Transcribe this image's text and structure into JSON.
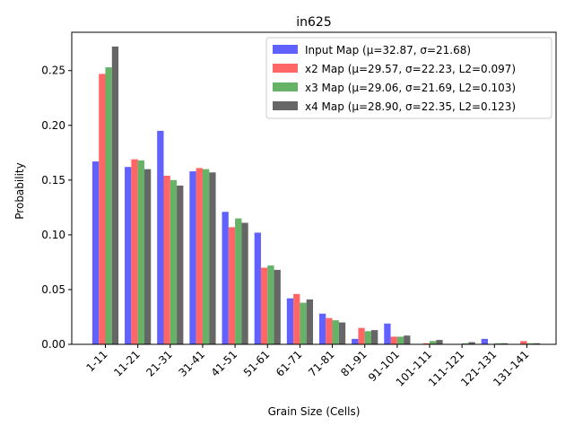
{
  "chart_data": {
    "type": "bar",
    "title": "in625",
    "xlabel": "Grain Size (Cells)",
    "ylabel": "Probability",
    "ylim": [
      0,
      0.285
    ],
    "yticks": [
      "0.00",
      "0.05",
      "0.10",
      "0.15",
      "0.20",
      "0.25"
    ],
    "grid": false,
    "legend_position": "top-right",
    "categories": [
      "1-11",
      "11-21",
      "21-31",
      "31-41",
      "41-51",
      "51-61",
      "61-71",
      "71-81",
      "81-91",
      "91-101",
      "101-111",
      "111-121",
      "121-131",
      "131-141"
    ],
    "series": [
      {
        "name": "Input Map (μ=32.87, σ=21.68)",
        "color": "#6161ff",
        "values": [
          0.167,
          0.162,
          0.195,
          0.158,
          0.121,
          0.102,
          0.042,
          0.028,
          0.005,
          0.019,
          0.0,
          0.0,
          0.005,
          0.0
        ]
      },
      {
        "name": "x2 Map (μ=29.57, σ=22.23, L2=0.097)",
        "color": "#ff6666",
        "values": [
          0.247,
          0.169,
          0.154,
          0.161,
          0.107,
          0.07,
          0.046,
          0.024,
          0.015,
          0.007,
          0.001,
          0.0,
          0.0,
          0.003
        ]
      },
      {
        "name": "x3 Map (μ=29.06, σ=21.69, L2=0.103)",
        "color": "#66b266",
        "values": [
          0.253,
          0.168,
          0.15,
          0.16,
          0.115,
          0.072,
          0.038,
          0.022,
          0.012,
          0.007,
          0.003,
          0.001,
          0.001,
          0.001
        ]
      },
      {
        "name": "x4 Map (μ=28.90, σ=22.35, L2=0.123)",
        "color": "#666666",
        "values": [
          0.272,
          0.16,
          0.145,
          0.157,
          0.111,
          0.068,
          0.041,
          0.02,
          0.013,
          0.008,
          0.004,
          0.002,
          0.001,
          0.001
        ]
      }
    ]
  }
}
